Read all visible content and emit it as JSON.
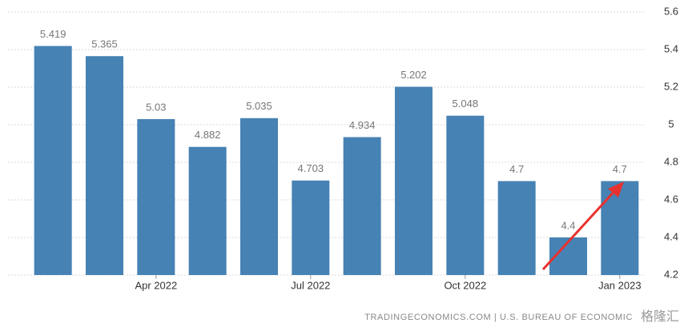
{
  "chart_data": {
    "type": "bar",
    "categories": [
      null,
      null,
      "Apr 2022",
      null,
      null,
      "Jul 2022",
      null,
      null,
      "Oct 2022",
      null,
      null,
      "Jan 2023"
    ],
    "values": [
      5.419,
      5.365,
      5.03,
      4.882,
      5.035,
      4.703,
      4.934,
      5.202,
      5.048,
      4.7,
      4.4,
      4.7
    ],
    "color": "#4682b4",
    "ylim": [
      4.2,
      5.6
    ],
    "yticks": [
      4.2,
      4.4,
      4.6,
      4.8,
      5,
      5.2,
      5.4,
      5.6
    ],
    "grid": true,
    "source": "TRADINGECONOMICS.COM | U.S. BUREAU OF ECONOMIC",
    "watermark": "格隆汇"
  }
}
